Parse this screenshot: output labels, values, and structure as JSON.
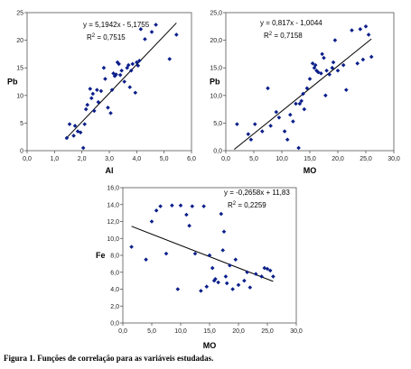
{
  "caption": "Figura 1. Funções de correlação para as variáveis estudadas.",
  "marker_color": "#0b1f8a",
  "line_color": "#000000",
  "chart_data": [
    {
      "type": "scatter",
      "xlabel": "Al",
      "ylabel": "Pb",
      "xlim": [
        0,
        6
      ],
      "ylim": [
        0,
        25
      ],
      "xticks": [
        "0,0",
        "1,0",
        "2,0",
        "3,0",
        "4,0",
        "5,0",
        "6,0"
      ],
      "yticks": [
        "0",
        "5",
        "10",
        "15",
        "20",
        "25"
      ],
      "equation": "y = 5,1942x - 5,1755",
      "r2_label": "R",
      "r2_value": "2",
      "r2_text": " = 0,7515",
      "trend": {
        "slope": 5.1942,
        "intercept": -5.1755,
        "x_range": [
          1.4,
          5.45
        ]
      },
      "x": [
        1.45,
        1.55,
        1.7,
        1.75,
        1.85,
        1.95,
        2.05,
        2.1,
        2.15,
        2.2,
        2.3,
        2.35,
        2.4,
        2.45,
        2.55,
        2.6,
        2.7,
        2.8,
        2.85,
        2.95,
        3.05,
        3.1,
        3.15,
        3.2,
        3.25,
        3.3,
        3.35,
        3.4,
        3.45,
        3.55,
        3.65,
        3.7,
        3.75,
        3.8,
        3.85,
        3.95,
        4.0,
        4.05,
        4.1,
        4.15,
        4.3,
        4.55,
        4.7,
        5.2,
        5.45
      ],
      "y": [
        2.3,
        4.8,
        2.7,
        4.5,
        3.5,
        3.3,
        0.5,
        4.8,
        7.5,
        8.3,
        11.2,
        9.5,
        10.3,
        7.2,
        11.0,
        8.8,
        10.8,
        15.0,
        13.0,
        7.8,
        6.8,
        11.0,
        14.0,
        13.5,
        13.8,
        16.0,
        15.7,
        13.7,
        14.5,
        12.5,
        15.0,
        15.5,
        11.5,
        14.5,
        15.7,
        10.5,
        16.0,
        15.4,
        16.3,
        22.0,
        20.2,
        21.5,
        22.8,
        16.6,
        21.0
      ]
    },
    {
      "type": "scatter",
      "xlabel": "MO",
      "ylabel": "Pb",
      "xlim": [
        0,
        30
      ],
      "ylim": [
        0,
        25
      ],
      "xticks": [
        "0,0",
        "5,0",
        "10,0",
        "15,0",
        "20,0",
        "25,0",
        "30,0"
      ],
      "yticks": [
        "0,0",
        "5,0",
        "10,0",
        "15,0",
        "20,0",
        "25,0"
      ],
      "equation": "y = 0,817x - 1,0044",
      "r2_label": "R",
      "r2_value": "2",
      "r2_text": " = 0,7158",
      "trend": {
        "slope": 0.817,
        "intercept": -1.0044,
        "x_range": [
          1.5,
          26.0
        ]
      },
      "x": [
        2.0,
        4.0,
        4.5,
        5.2,
        6.5,
        7.5,
        8.0,
        9.0,
        9.5,
        10.5,
        11.0,
        11.5,
        12.0,
        12.5,
        13.0,
        13.2,
        13.5,
        13.8,
        14.0,
        14.5,
        15.0,
        15.5,
        15.8,
        16.0,
        16.2,
        16.5,
        17.0,
        17.2,
        17.5,
        17.8,
        18.0,
        18.5,
        19.0,
        19.2,
        19.5,
        20.0,
        21.0,
        21.5,
        22.5,
        23.5,
        24.0,
        24.5,
        25.0,
        25.5,
        26.0
      ],
      "y": [
        4.8,
        3.0,
        2.0,
        4.8,
        3.5,
        11.3,
        4.5,
        7.0,
        6.0,
        3.5,
        2.0,
        6.5,
        5.3,
        8.5,
        0.5,
        8.5,
        9.0,
        10.3,
        7.5,
        11.3,
        13.0,
        15.8,
        15.0,
        15.5,
        14.5,
        14.2,
        14.0,
        17.5,
        16.8,
        10.0,
        14.5,
        13.8,
        15.0,
        16.0,
        20.0,
        14.5,
        15.5,
        11.0,
        21.8,
        15.8,
        22.0,
        16.5,
        22.5,
        21.0,
        17.0
      ]
    },
    {
      "type": "scatter",
      "xlabel": "MO",
      "ylabel": "Fe",
      "xlim": [
        0,
        30
      ],
      "ylim": [
        0,
        16
      ],
      "xticks": [
        "0,0",
        "5,0",
        "10,0",
        "15,0",
        "20,0",
        "25,0",
        "30,0"
      ],
      "yticks": [
        "0,0",
        "2,0",
        "4,0",
        "6,0",
        "8,0",
        "10,0",
        "12,0",
        "14,0",
        "16,0"
      ],
      "equation": "y = -0,2658x + 11,83",
      "r2_label": "R",
      "r2_value": "2",
      "r2_text": " = 0,2259",
      "trend": {
        "slope": -0.2658,
        "intercept": 11.83,
        "x_range": [
          1.5,
          26.0
        ]
      },
      "x": [
        1.5,
        4.0,
        5.0,
        5.8,
        6.5,
        7.5,
        8.5,
        9.5,
        10.0,
        11.0,
        11.5,
        12.0,
        12.5,
        13.5,
        14.0,
        14.5,
        15.0,
        15.5,
        15.8,
        16.0,
        16.5,
        17.0,
        17.3,
        17.5,
        17.8,
        18.0,
        18.5,
        19.0,
        19.5,
        20.0,
        21.0,
        21.5,
        22.0,
        23.0,
        24.0,
        24.5,
        25.0,
        25.5,
        26.0
      ],
      "y": [
        9.0,
        7.5,
        12.0,
        13.3,
        13.8,
        8.2,
        13.9,
        4.0,
        13.9,
        12.8,
        11.5,
        13.8,
        8.2,
        3.8,
        13.8,
        4.3,
        8.0,
        6.5,
        5.0,
        5.2,
        4.8,
        12.9,
        8.6,
        10.8,
        5.5,
        4.7,
        6.8,
        4.0,
        7.5,
        4.5,
        5.0,
        6.0,
        4.2,
        5.8,
        5.5,
        6.5,
        6.4,
        6.2,
        5.5
      ]
    }
  ]
}
